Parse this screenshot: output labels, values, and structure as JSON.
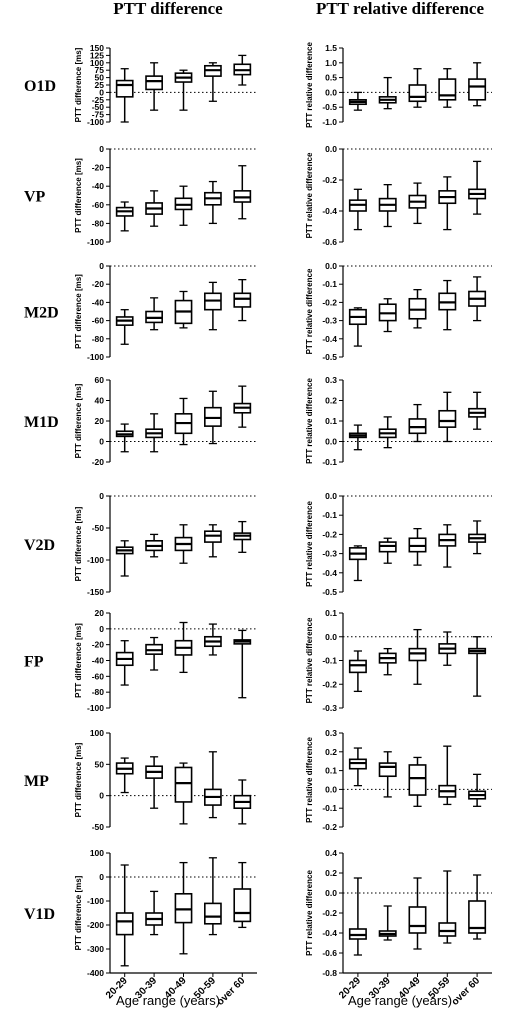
{
  "figure": {
    "left_title": "PTT difference",
    "right_title": "PTT relative difference",
    "left_ylabel": "PTT difference [ms]",
    "right_ylabel": "PTT relative difference",
    "xlabel": "Age range (years)",
    "categories": [
      "20-29",
      "30-39",
      "40-49",
      "50-59",
      "over 60"
    ],
    "box_color": "#000000"
  },
  "chart_data": [
    {
      "type": "box",
      "row_label": "O1D",
      "measure": "PTT difference",
      "ylabel": "PTT difference [ms]",
      "ylim": [
        -100,
        150
      ],
      "yticks": [
        -100,
        -75,
        -50,
        -25,
        0,
        25,
        50,
        75,
        100,
        125,
        150
      ],
      "ref_line": 0,
      "categories": [
        "20-29",
        "30-39",
        "40-49",
        "50-59",
        "over 60"
      ],
      "boxes": [
        {
          "min": -100,
          "q1": -15,
          "median": 25,
          "q3": 40,
          "max": 80
        },
        {
          "min": -60,
          "q1": 10,
          "median": 38,
          "q3": 55,
          "max": 100
        },
        {
          "min": -60,
          "q1": 35,
          "median": 50,
          "q3": 65,
          "max": 75
        },
        {
          "min": -30,
          "q1": 55,
          "median": 75,
          "q3": 90,
          "max": 100
        },
        {
          "min": 25,
          "q1": 60,
          "median": 75,
          "q3": 95,
          "max": 125
        }
      ]
    },
    {
      "type": "box",
      "row_label": "O1D",
      "measure": "PTT relative difference",
      "ylabel": "PTT relative difference",
      "ylim": [
        -1.0,
        1.5
      ],
      "yticks": [
        -1.0,
        -0.5,
        0.0,
        0.5,
        1.0,
        1.5
      ],
      "ref_line": 0,
      "categories": [
        "20-29",
        "30-39",
        "40-49",
        "50-59",
        "over 60"
      ],
      "boxes": [
        {
          "min": -0.6,
          "q1": -0.4,
          "median": -0.32,
          "q3": -0.25,
          "max": 0.0
        },
        {
          "min": -0.55,
          "q1": -0.35,
          "median": -0.25,
          "q3": -0.15,
          "max": 0.5
        },
        {
          "min": -0.5,
          "q1": -0.3,
          "median": -0.15,
          "q3": 0.25,
          "max": 0.8
        },
        {
          "min": -0.5,
          "q1": -0.25,
          "median": -0.1,
          "q3": 0.45,
          "max": 0.8
        },
        {
          "min": -0.45,
          "q1": -0.25,
          "median": 0.2,
          "q3": 0.45,
          "max": 1.0
        }
      ]
    },
    {
      "type": "box",
      "row_label": "VP",
      "measure": "PTT difference",
      "ylabel": "PTT difference [ms]",
      "ylim": [
        -100,
        0
      ],
      "yticks": [
        -100,
        -80,
        -60,
        -40,
        -20,
        0
      ],
      "ref_line": 0,
      "categories": [
        "20-29",
        "30-39",
        "40-49",
        "50-59",
        "over 60"
      ],
      "boxes": [
        {
          "min": -88,
          "q1": -72,
          "median": -67,
          "q3": -63,
          "max": -57
        },
        {
          "min": -83,
          "q1": -70,
          "median": -64,
          "q3": -58,
          "max": -45
        },
        {
          "min": -82,
          "q1": -65,
          "median": -60,
          "q3": -53,
          "max": -40
        },
        {
          "min": -80,
          "q1": -60,
          "median": -53,
          "q3": -47,
          "max": -35
        },
        {
          "min": -75,
          "q1": -57,
          "median": -52,
          "q3": -45,
          "max": -18
        }
      ]
    },
    {
      "type": "box",
      "row_label": "VP",
      "measure": "PTT relative difference",
      "ylabel": "PTT relative difference",
      "ylim": [
        -0.6,
        0.0
      ],
      "yticks": [
        -0.6,
        -0.4,
        -0.2,
        0.0
      ],
      "ref_line": 0,
      "categories": [
        "20-29",
        "30-39",
        "40-49",
        "50-59",
        "over 60"
      ],
      "boxes": [
        {
          "min": -0.52,
          "q1": -0.4,
          "median": -0.36,
          "q3": -0.33,
          "max": -0.26
        },
        {
          "min": -0.5,
          "q1": -0.4,
          "median": -0.36,
          "q3": -0.32,
          "max": -0.23
        },
        {
          "min": -0.48,
          "q1": -0.38,
          "median": -0.34,
          "q3": -0.3,
          "max": -0.22
        },
        {
          "min": -0.52,
          "q1": -0.35,
          "median": -0.31,
          "q3": -0.27,
          "max": -0.18
        },
        {
          "min": -0.42,
          "q1": -0.32,
          "median": -0.29,
          "q3": -0.26,
          "max": -0.08
        }
      ]
    },
    {
      "type": "box",
      "row_label": "M2D",
      "measure": "PTT difference",
      "ylabel": "PTT difference [ms]",
      "ylim": [
        -100,
        0
      ],
      "yticks": [
        -100,
        -80,
        -60,
        -40,
        -20,
        0
      ],
      "ref_line": 0,
      "categories": [
        "20-29",
        "30-39",
        "40-49",
        "50-59",
        "over 60"
      ],
      "boxes": [
        {
          "min": -86,
          "q1": -65,
          "median": -60,
          "q3": -56,
          "max": -48
        },
        {
          "min": -70,
          "q1": -62,
          "median": -57,
          "q3": -50,
          "max": -35
        },
        {
          "min": -68,
          "q1": -63,
          "median": -50,
          "q3": -38,
          "max": -28
        },
        {
          "min": -70,
          "q1": -48,
          "median": -38,
          "q3": -30,
          "max": -18
        },
        {
          "min": -60,
          "q1": -45,
          "median": -36,
          "q3": -30,
          "max": -15
        }
      ]
    },
    {
      "type": "box",
      "row_label": "M2D",
      "measure": "PTT relative difference",
      "ylabel": "PTT relative difference",
      "ylim": [
        -0.5,
        0.0
      ],
      "yticks": [
        -0.5,
        -0.4,
        -0.3,
        -0.2,
        -0.1,
        0.0
      ],
      "ref_line": 0,
      "categories": [
        "20-29",
        "30-39",
        "40-49",
        "50-59",
        "over 60"
      ],
      "boxes": [
        {
          "min": -0.44,
          "q1": -0.32,
          "median": -0.28,
          "q3": -0.24,
          "max": -0.23
        },
        {
          "min": -0.36,
          "q1": -0.3,
          "median": -0.26,
          "q3": -0.21,
          "max": -0.18
        },
        {
          "min": -0.34,
          "q1": -0.29,
          "median": -0.24,
          "q3": -0.18,
          "max": -0.13
        },
        {
          "min": -0.35,
          "q1": -0.24,
          "median": -0.2,
          "q3": -0.15,
          "max": -0.08
        },
        {
          "min": -0.3,
          "q1": -0.22,
          "median": -0.18,
          "q3": -0.14,
          "max": -0.06
        }
      ]
    },
    {
      "type": "box",
      "row_label": "M1D",
      "measure": "PTT difference",
      "ylabel": "PTT difference [ms]",
      "ylim": [
        -20,
        60
      ],
      "yticks": [
        -20,
        0,
        20,
        40,
        60
      ],
      "ref_line": 0,
      "categories": [
        "20-29",
        "30-39",
        "40-49",
        "50-59",
        "over 60"
      ],
      "boxes": [
        {
          "min": -10,
          "q1": 5,
          "median": 7,
          "q3": 10,
          "max": 17
        },
        {
          "min": -10,
          "q1": 4,
          "median": 8,
          "q3": 12,
          "max": 27
        },
        {
          "min": -3,
          "q1": 8,
          "median": 18,
          "q3": 27,
          "max": 42
        },
        {
          "min": -2,
          "q1": 15,
          "median": 23,
          "q3": 33,
          "max": 49
        },
        {
          "min": 14,
          "q1": 28,
          "median": 33,
          "q3": 37,
          "max": 54
        }
      ]
    },
    {
      "type": "box",
      "row_label": "M1D",
      "measure": "PTT relative difference",
      "ylabel": "PTT relative difference",
      "ylim": [
        -0.1,
        0.3
      ],
      "yticks": [
        -0.1,
        0.0,
        0.1,
        0.2,
        0.3
      ],
      "ref_line": 0,
      "categories": [
        "20-29",
        "30-39",
        "40-49",
        "50-59",
        "over 60"
      ],
      "boxes": [
        {
          "min": -0.04,
          "q1": 0.02,
          "median": 0.03,
          "q3": 0.04,
          "max": 0.08
        },
        {
          "min": -0.03,
          "q1": 0.02,
          "median": 0.04,
          "q3": 0.06,
          "max": 0.12
        },
        {
          "min": 0.0,
          "q1": 0.04,
          "median": 0.07,
          "q3": 0.11,
          "max": 0.18
        },
        {
          "min": 0.0,
          "q1": 0.07,
          "median": 0.1,
          "q3": 0.15,
          "max": 0.24
        },
        {
          "min": 0.06,
          "q1": 0.12,
          "median": 0.14,
          "q3": 0.16,
          "max": 0.24
        }
      ]
    },
    {
      "type": "box",
      "row_label": "V2D",
      "measure": "PTT difference",
      "ylabel": "PTT difference [ms]",
      "ylim": [
        -150,
        0
      ],
      "yticks": [
        -150,
        -100,
        -50,
        0
      ],
      "ref_line": 0,
      "categories": [
        "20-29",
        "30-39",
        "40-49",
        "50-59",
        "over 60"
      ],
      "boxes": [
        {
          "min": -125,
          "q1": -90,
          "median": -85,
          "q3": -80,
          "max": -70
        },
        {
          "min": -95,
          "q1": -85,
          "median": -78,
          "q3": -70,
          "max": -60
        },
        {
          "min": -105,
          "q1": -85,
          "median": -75,
          "q3": -65,
          "max": -45
        },
        {
          "min": -95,
          "q1": -72,
          "median": -62,
          "q3": -55,
          "max": -45
        },
        {
          "min": -88,
          "q1": -68,
          "median": -62,
          "q3": -58,
          "max": -40
        }
      ]
    },
    {
      "type": "box",
      "row_label": "V2D",
      "measure": "PTT relative difference",
      "ylabel": "PTT relative difference",
      "ylim": [
        -0.5,
        0.0
      ],
      "yticks": [
        -0.5,
        -0.4,
        -0.3,
        -0.2,
        -0.1,
        0.0
      ],
      "ref_line": 0,
      "categories": [
        "20-29",
        "30-39",
        "40-49",
        "50-59",
        "over 60"
      ],
      "boxes": [
        {
          "min": -0.44,
          "q1": -0.33,
          "median": -0.3,
          "q3": -0.27,
          "max": -0.26
        },
        {
          "min": -0.35,
          "q1": -0.29,
          "median": -0.26,
          "q3": -0.24,
          "max": -0.22
        },
        {
          "min": -0.36,
          "q1": -0.29,
          "median": -0.26,
          "q3": -0.22,
          "max": -0.17
        },
        {
          "min": -0.37,
          "q1": -0.26,
          "median": -0.23,
          "q3": -0.2,
          "max": -0.15
        },
        {
          "min": -0.3,
          "q1": -0.24,
          "median": -0.22,
          "q3": -0.2,
          "max": -0.13
        }
      ]
    },
    {
      "type": "box",
      "row_label": "FP",
      "measure": "PTT difference",
      "ylabel": "PTT difference [ms]",
      "ylim": [
        -100,
        20
      ],
      "yticks": [
        -100,
        -80,
        -60,
        -40,
        -20,
        0,
        20
      ],
      "ref_line": 0,
      "categories": [
        "20-29",
        "30-39",
        "40-49",
        "50-59",
        "over 60"
      ],
      "boxes": [
        {
          "min": -71,
          "q1": -46,
          "median": -38,
          "q3": -30,
          "max": -15
        },
        {
          "min": -52,
          "q1": -32,
          "median": -27,
          "q3": -20,
          "max": -11
        },
        {
          "min": -55,
          "q1": -33,
          "median": -24,
          "q3": -15,
          "max": 8
        },
        {
          "min": -33,
          "q1": -22,
          "median": -16,
          "q3": -10,
          "max": 6
        },
        {
          "min": -87,
          "q1": -19,
          "median": -16,
          "q3": -14,
          "max": -2
        }
      ]
    },
    {
      "type": "box",
      "row_label": "FP",
      "measure": "PTT relative difference",
      "ylabel": "PTT relative difference",
      "ylim": [
        -0.3,
        0.1
      ],
      "yticks": [
        -0.3,
        -0.2,
        -0.1,
        0.0,
        0.1
      ],
      "ref_line": 0,
      "categories": [
        "20-29",
        "30-39",
        "40-49",
        "50-59",
        "over 60"
      ],
      "boxes": [
        {
          "min": -0.23,
          "q1": -0.15,
          "median": -0.12,
          "q3": -0.1,
          "max": -0.06
        },
        {
          "min": -0.16,
          "q1": -0.11,
          "median": -0.09,
          "q3": -0.07,
          "max": -0.05
        },
        {
          "min": -0.2,
          "q1": -0.1,
          "median": -0.07,
          "q3": -0.05,
          "max": 0.03
        },
        {
          "min": -0.12,
          "q1": -0.07,
          "median": -0.05,
          "q3": -0.03,
          "max": 0.02
        },
        {
          "min": -0.25,
          "q1": -0.07,
          "median": -0.06,
          "q3": -0.05,
          "max": 0.0
        }
      ]
    },
    {
      "type": "box",
      "row_label": "MP",
      "measure": "PTT difference",
      "ylabel": "PTT difference [ms]",
      "ylim": [
        -50,
        100
      ],
      "yticks": [
        -50,
        0,
        50,
        100
      ],
      "ref_line": 0,
      "categories": [
        "20-29",
        "30-39",
        "40-49",
        "50-59",
        "over 60"
      ],
      "boxes": [
        {
          "min": 5,
          "q1": 35,
          "median": 43,
          "q3": 52,
          "max": 60
        },
        {
          "min": -20,
          "q1": 28,
          "median": 38,
          "q3": 47,
          "max": 62
        },
        {
          "min": -45,
          "q1": -10,
          "median": 20,
          "q3": 45,
          "max": 52
        },
        {
          "min": -35,
          "q1": -15,
          "median": -2,
          "q3": 10,
          "max": 70
        },
        {
          "min": -45,
          "q1": -20,
          "median": -10,
          "q3": 0,
          "max": 25
        }
      ]
    },
    {
      "type": "box",
      "row_label": "MP",
      "measure": "PTT relative difference",
      "ylabel": "PTT relative difference",
      "ylim": [
        -0.2,
        0.3
      ],
      "yticks": [
        -0.2,
        -0.1,
        0.0,
        0.1,
        0.2,
        0.3
      ],
      "ref_line": 0,
      "categories": [
        "20-29",
        "30-39",
        "40-49",
        "50-59",
        "over 60"
      ],
      "boxes": [
        {
          "min": 0.02,
          "q1": 0.11,
          "median": 0.14,
          "q3": 0.16,
          "max": 0.22
        },
        {
          "min": -0.04,
          "q1": 0.07,
          "median": 0.12,
          "q3": 0.14,
          "max": 0.2
        },
        {
          "min": -0.09,
          "q1": -0.03,
          "median": 0.06,
          "q3": 0.13,
          "max": 0.17
        },
        {
          "min": -0.08,
          "q1": -0.04,
          "median": -0.01,
          "q3": 0.02,
          "max": 0.23
        },
        {
          "min": -0.09,
          "q1": -0.05,
          "median": -0.03,
          "q3": -0.01,
          "max": 0.08
        }
      ]
    },
    {
      "type": "box",
      "row_label": "V1D",
      "measure": "PTT difference",
      "ylabel": "PTT difference [ms]",
      "ylim": [
        -400,
        100
      ],
      "yticks": [
        -400,
        -300,
        -200,
        -100,
        0,
        100
      ],
      "ref_line": 0,
      "categories": [
        "20-29",
        "30-39",
        "40-49",
        "50-59",
        "over 60"
      ],
      "boxes": [
        {
          "min": -370,
          "q1": -240,
          "median": -185,
          "q3": -150,
          "max": 50
        },
        {
          "min": -240,
          "q1": -200,
          "median": -175,
          "q3": -150,
          "max": -60
        },
        {
          "min": -320,
          "q1": -190,
          "median": -135,
          "q3": -70,
          "max": 60
        },
        {
          "min": -240,
          "q1": -195,
          "median": -165,
          "q3": -110,
          "max": 80
        },
        {
          "min": -210,
          "q1": -185,
          "median": -150,
          "q3": -50,
          "max": 60
        }
      ]
    },
    {
      "type": "box",
      "row_label": "V1D",
      "measure": "PTT relative difference",
      "ylabel": "PTT relative difference",
      "ylim": [
        -0.8,
        0.4
      ],
      "yticks": [
        -0.8,
        -0.6,
        -0.4,
        -0.2,
        0.0,
        0.2,
        0.4
      ],
      "ref_line": 0,
      "categories": [
        "20-29",
        "30-39",
        "40-49",
        "50-59",
        "over 60"
      ],
      "boxes": [
        {
          "min": -0.62,
          "q1": -0.46,
          "median": -0.42,
          "q3": -0.36,
          "max": 0.15
        },
        {
          "min": -0.47,
          "q1": -0.43,
          "median": -0.41,
          "q3": -0.38,
          "max": -0.13
        },
        {
          "min": -0.56,
          "q1": -0.4,
          "median": -0.33,
          "q3": -0.14,
          "max": 0.15
        },
        {
          "min": -0.5,
          "q1": -0.43,
          "median": -0.38,
          "q3": -0.3,
          "max": 0.22
        },
        {
          "min": -0.46,
          "q1": -0.4,
          "median": -0.35,
          "q3": -0.08,
          "max": 0.18
        }
      ]
    }
  ]
}
